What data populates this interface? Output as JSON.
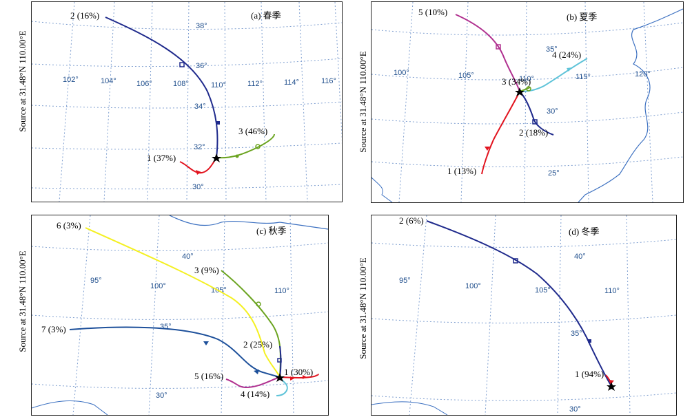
{
  "colors": {
    "grid": "#7f9fd0",
    "coast": "#3a6fc0",
    "navy": "#1f2a8c",
    "red": "#e2141f",
    "green": "#6aa31f",
    "magenta": "#b0308f",
    "cyan": "#5ec3d8",
    "yellow": "#f4f022",
    "blue": "#1c4f9a"
  },
  "panels": [
    {
      "id": "a",
      "ylabel": "Source at 31.48°N 110.00°E",
      "title": "(a) 春季",
      "lon_labels": [
        "102°",
        "104°",
        "106°",
        "108°",
        "110°",
        "112°",
        "114°",
        "116°"
      ],
      "lat_labels": [
        "38°",
        "36°",
        "34°",
        "32°",
        "30°"
      ],
      "trajectories": [
        {
          "label": "2 (16%)",
          "color": "navy"
        },
        {
          "label": "3 (46%)",
          "color": "green"
        },
        {
          "label": "1 (37%)",
          "color": "red"
        }
      ]
    },
    {
      "id": "b",
      "ylabel": "Source at 31.48°N 110.00°E",
      "title": "(b) 夏季",
      "lon_labels": [
        "100°",
        "105°",
        "110°",
        "115°",
        "120°"
      ],
      "lat_labels": [
        "35°",
        "30°",
        "25°"
      ],
      "trajectories": [
        {
          "label": "5 (10%)",
          "color": "magenta"
        },
        {
          "label": "4 (24%)",
          "color": "cyan"
        },
        {
          "label": "3 (34%)",
          "color": "green"
        },
        {
          "label": "2 (18%)",
          "color": "navy"
        },
        {
          "label": "1 (13%)",
          "color": "red"
        }
      ]
    },
    {
      "id": "c",
      "ylabel": "Source at 31.48°N 110.00°E",
      "title": "(c) 秋季",
      "lon_labels": [
        "95°",
        "100°",
        "105°",
        "110°"
      ],
      "lat_labels": [
        "40°",
        "35°",
        "30°"
      ],
      "trajectories": [
        {
          "label": "6 (3%)",
          "color": "yellow"
        },
        {
          "label": "3 (9%)",
          "color": "green"
        },
        {
          "label": "7 (3%)",
          "color": "blue"
        },
        {
          "label": "2 (25%)",
          "color": "navy"
        },
        {
          "label": "1 (30%)",
          "color": "red"
        },
        {
          "label": "5 (16%)",
          "color": "magenta"
        },
        {
          "label": "4 (14%)",
          "color": "cyan"
        }
      ]
    },
    {
      "id": "d",
      "ylabel": "Source at 31.48°N 110.00°E",
      "title": "(d) 冬季",
      "lon_labels": [
        "95°",
        "100°",
        "105°",
        "110°"
      ],
      "lat_labels": [
        "40°",
        "35°",
        "30°"
      ],
      "trajectories": [
        {
          "label": "2 (6%)",
          "color": "navy"
        },
        {
          "label": "1 (94%)",
          "color": "red"
        }
      ]
    }
  ]
}
